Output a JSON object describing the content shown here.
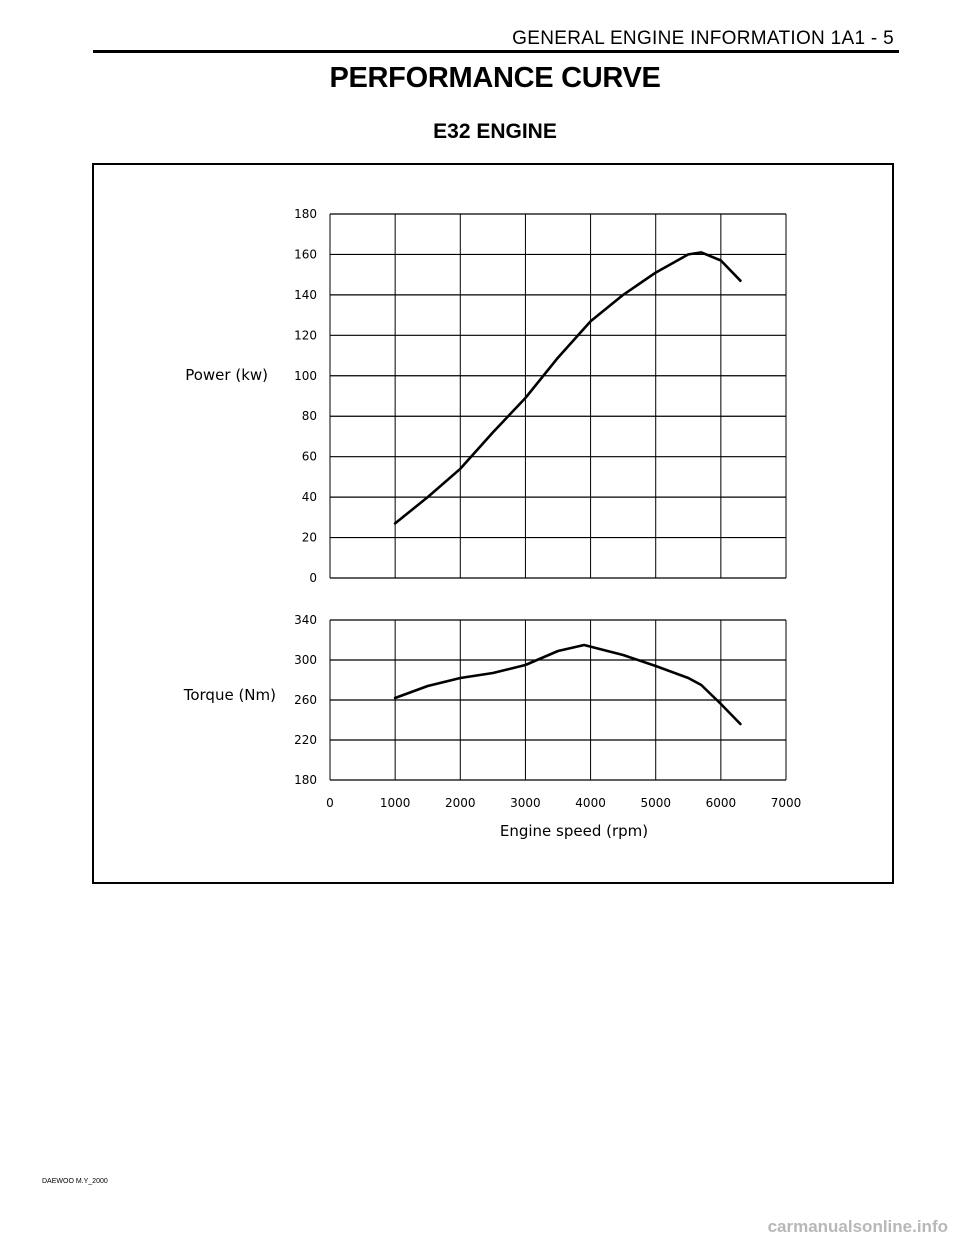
{
  "header": {
    "text": "GENERAL ENGINE INFORMATION  1A1 - 5"
  },
  "title": "PERFORMANCE CURVE",
  "subtitle": "E32 ENGINE",
  "footer": "DAEWOO M.Y_2000",
  "watermark": "carmanualsonline.info",
  "chart_data": [
    {
      "type": "line",
      "ylabel": "Power  (kw)",
      "ylim": [
        0,
        180
      ],
      "yticks": [
        0,
        20,
        40,
        60,
        80,
        100,
        120,
        140,
        160,
        180
      ],
      "xlim": [
        0,
        7000
      ],
      "grid": true,
      "series": [
        {
          "x": [
            1000,
            1500,
            2000,
            2500,
            3000,
            3500,
            4000,
            4500,
            5000,
            5500,
            5700,
            6000,
            6300
          ],
          "values": [
            27,
            40,
            54,
            72,
            89,
            109,
            127,
            140,
            151,
            160,
            161,
            157,
            147
          ]
        }
      ]
    },
    {
      "type": "line",
      "ylabel": "Torque  (Nm)",
      "xlabel": "Engine  speed  (rpm)",
      "ylim": [
        180,
        340
      ],
      "yticks": [
        180,
        220,
        260,
        300,
        340
      ],
      "xlim": [
        0,
        7000
      ],
      "xticks": [
        0,
        1000,
        2000,
        3000,
        4000,
        5000,
        6000,
        7000
      ],
      "grid": true,
      "series": [
        {
          "x": [
            1000,
            1500,
            2000,
            2500,
            3000,
            3500,
            3900,
            4500,
            5000,
            5500,
            5700,
            6000,
            6300
          ],
          "values": [
            262,
            274,
            282,
            287,
            295,
            309,
            315,
            305,
            294,
            282,
            275,
            256,
            236
          ]
        }
      ]
    }
  ]
}
